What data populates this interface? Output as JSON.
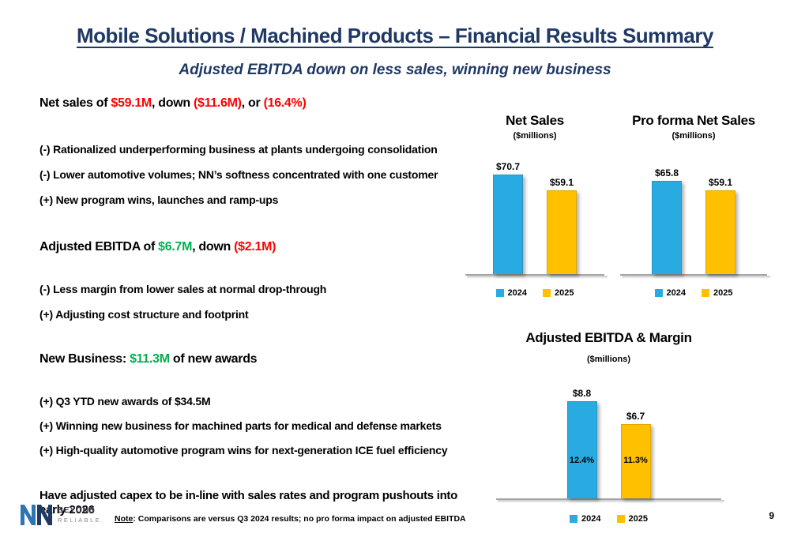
{
  "header": {
    "title": "Mobile Solutions / Machined Products – Financial Results Summary",
    "subtitle": "Adjusted EBITDA down on less sales, winning new business"
  },
  "left": {
    "net_sales": {
      "lead": "Net sales",
      "seg1": " of ",
      "amount": "$59.1M",
      "seg2": ", down ",
      "down": "($11.6M)",
      "seg3": ", or ",
      "pct": "(16.4%)"
    },
    "net_sales_points": [
      "(-) Rationalized underperforming business at plants undergoing consolidation",
      "(-) Lower automotive volumes; NN’s softness concentrated with one customer",
      "(+) New program wins, launches and ramp-ups"
    ],
    "ebitda": {
      "lead": "Adjusted EBITDA",
      "seg1": " of ",
      "amount": "$6.7M",
      "seg2": ", down ",
      "down": "($2.1M)"
    },
    "ebitda_points": [
      "(-) Less margin from lower sales at normal drop-through",
      "(+) Adjusting cost structure and footprint"
    ],
    "new_business": {
      "lead": "New Business:",
      "seg1": " ",
      "amount": "$11.3M",
      "rest": " of new awards"
    },
    "new_business_points": [
      "(+) Q3 YTD new awards of $34.5M",
      "(+) Winning new business for machined parts for medical and defense markets",
      "(+) High-quality automotive program wins for next-generation ICE fuel efficiency"
    ],
    "capex_line": "Have adjusted capex to be in-line with sales rates and program pushouts into early 2026"
  },
  "footer": {
    "note_label": "Note",
    "note_rest": ": Comparisons are versus Q3 2024 results; no pro forma impact on adjusted EBITDA",
    "page_number": "9",
    "logo_line1": "BEYOND",
    "logo_line2": "RELIABLE."
  },
  "colors": {
    "navy": "#1F3864",
    "red": "#FF0000",
    "green": "#00B050",
    "bar_blue": "#29ABE2",
    "bar_yellow": "#FFC000"
  },
  "chart_data": [
    {
      "type": "bar",
      "title": "Net Sales",
      "subtitle": "($millions)",
      "categories": [
        "2024",
        "2025"
      ],
      "values": [
        70.7,
        59.1
      ],
      "bar_labels": [
        "$70.7",
        "$59.1"
      ],
      "legend": [
        "2024",
        "2025"
      ],
      "ylim": [
        0,
        80
      ],
      "grid": false,
      "legend_position": "bottom"
    },
    {
      "type": "bar",
      "title": "Pro forma Net Sales",
      "subtitle": "($millions)",
      "categories": [
        "2024",
        "2025"
      ],
      "values": [
        65.8,
        59.1
      ],
      "bar_labels": [
        "$65.8",
        "$59.1"
      ],
      "legend": [
        "2024",
        "2025"
      ],
      "ylim": [
        0,
        80
      ],
      "grid": false,
      "legend_position": "bottom"
    },
    {
      "type": "bar",
      "title": "Adjusted EBITDA & Margin",
      "subtitle": "($millions)",
      "categories": [
        "2024",
        "2025"
      ],
      "values": [
        8.8,
        6.7
      ],
      "bar_labels": [
        "$8.8",
        "$6.7"
      ],
      "margin_labels": [
        "12.4%",
        "11.3%"
      ],
      "legend": [
        "2024",
        "2025"
      ],
      "ylim": [
        0,
        10
      ],
      "grid": false,
      "legend_position": "bottom"
    }
  ]
}
